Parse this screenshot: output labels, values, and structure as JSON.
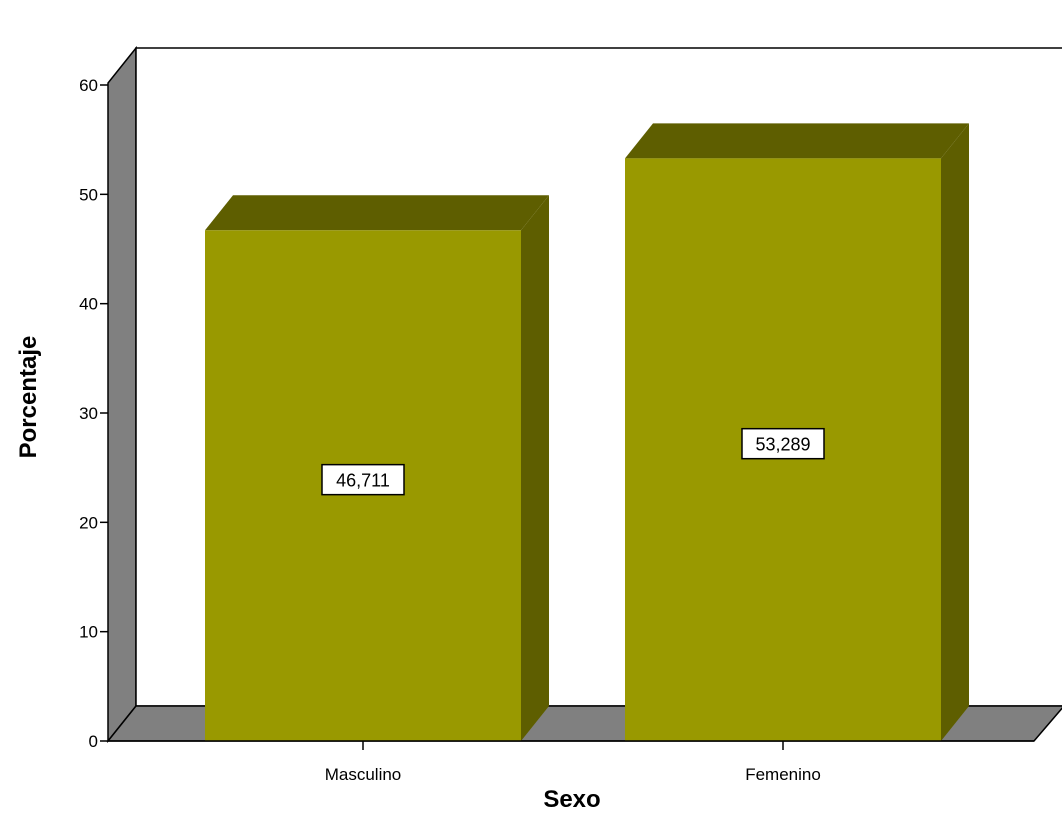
{
  "chart_data": {
    "type": "bar",
    "categories": [
      "Masculino",
      "Femenino"
    ],
    "values": [
      46.711,
      53.289
    ],
    "value_labels": [
      "46,711",
      "53,289"
    ],
    "title": "",
    "xlabel": "Sexo",
    "ylabel": "Porcentaje",
    "ylim": [
      0,
      60
    ],
    "yticks": [
      0,
      10,
      20,
      30,
      40,
      50,
      60
    ],
    "grid": false,
    "legend": "none",
    "style": "3d",
    "colors": {
      "bar_front": "#999900",
      "bar_top": "#5e5e00",
      "bar_side": "#5e5e00",
      "wall": "#808080",
      "floor": "#808080"
    }
  }
}
